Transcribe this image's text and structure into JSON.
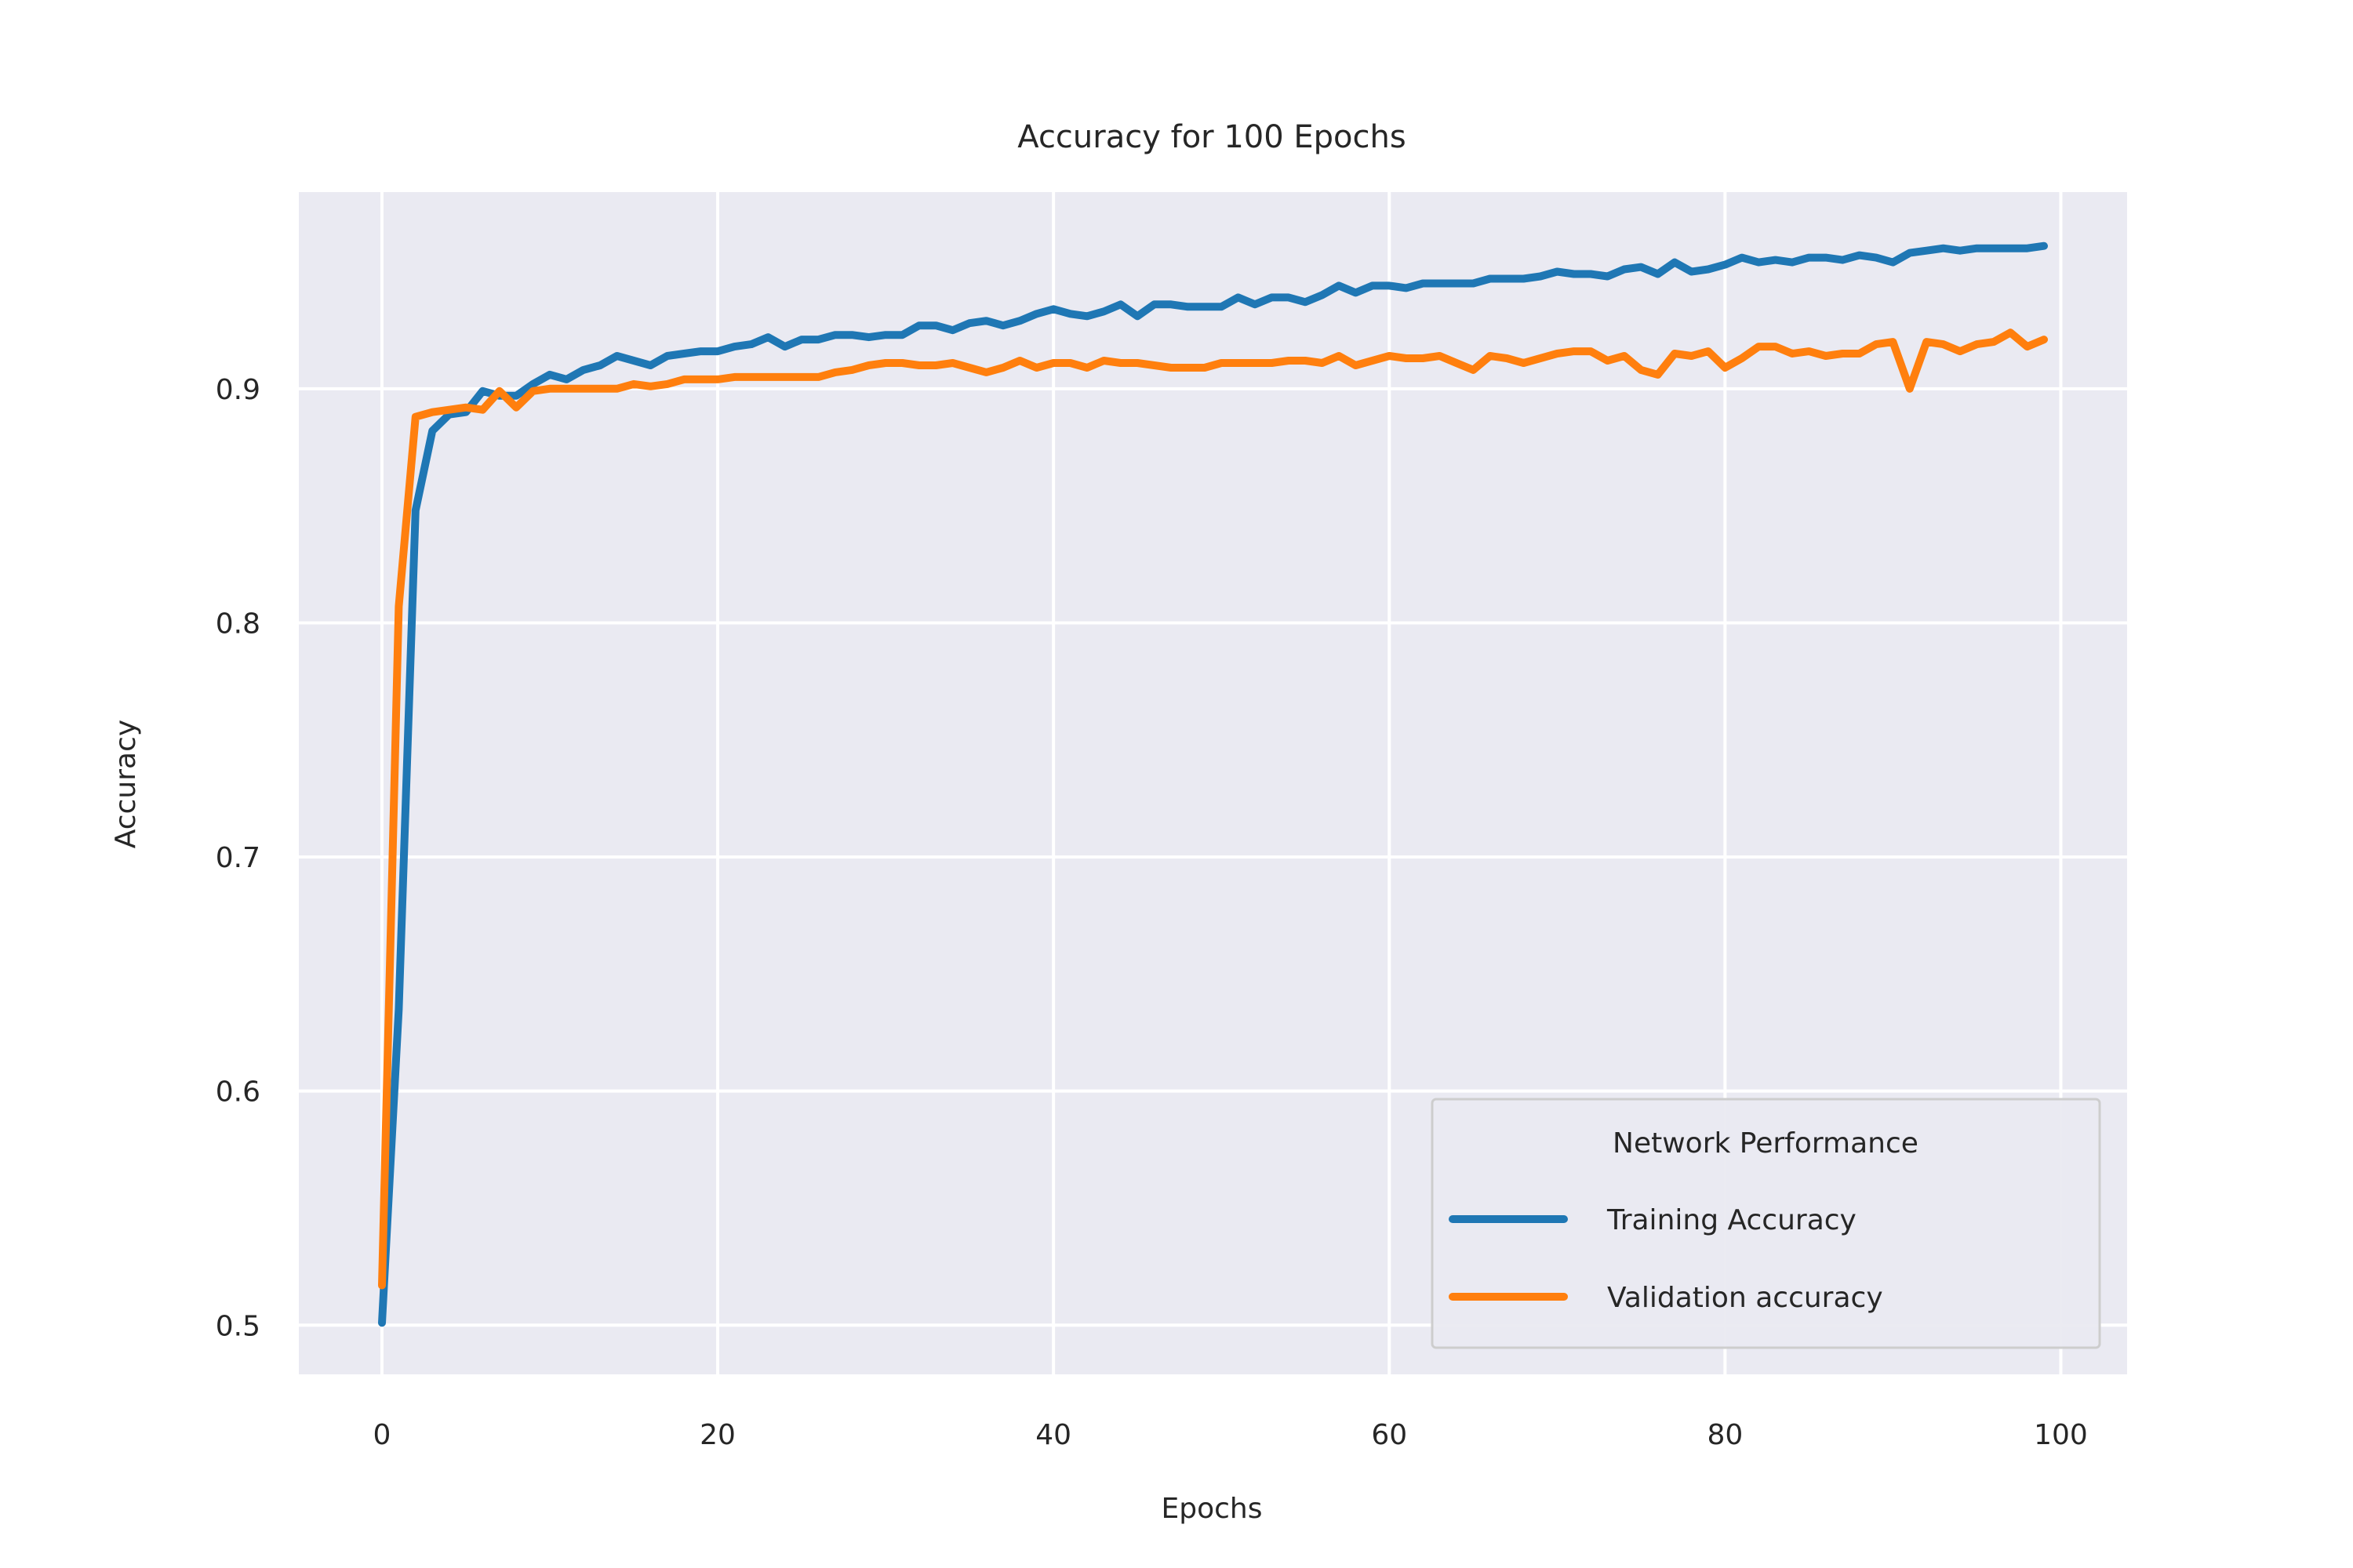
{
  "chart_data": {
    "type": "line",
    "title": "Accuracy for 100 Epochs",
    "xlabel": "Epochs",
    "ylabel": "Accuracy",
    "xlim": [
      -4.95,
      103.95
    ],
    "ylim": [
      0.479,
      0.984
    ],
    "xticks": [
      0,
      20,
      40,
      60,
      80,
      100
    ],
    "yticks": [
      0.5,
      0.6,
      0.7,
      0.8,
      0.9
    ],
    "ytick_labels": [
      "0.5",
      "0.6",
      "0.7",
      "0.8",
      "0.9"
    ],
    "grid": true,
    "legend": {
      "title": "Network Performance",
      "position": "lower right"
    },
    "colors": {
      "background": "#eaeaf2",
      "grid": "#ffffff"
    },
    "series": [
      {
        "name": "Training Accuracy",
        "color": "#1f77b4",
        "x": [
          0,
          1,
          2,
          3,
          4,
          5,
          6,
          7,
          8,
          9,
          10,
          11,
          12,
          13,
          14,
          15,
          16,
          17,
          18,
          19,
          20,
          21,
          22,
          23,
          24,
          25,
          26,
          27,
          28,
          29,
          30,
          31,
          32,
          33,
          34,
          35,
          36,
          37,
          38,
          39,
          40,
          41,
          42,
          43,
          44,
          45,
          46,
          47,
          48,
          49,
          50,
          51,
          52,
          53,
          54,
          55,
          56,
          57,
          58,
          59,
          60,
          61,
          62,
          63,
          64,
          65,
          66,
          67,
          68,
          69,
          70,
          71,
          72,
          73,
          74,
          75,
          76,
          77,
          78,
          79,
          80,
          81,
          82,
          83,
          84,
          85,
          86,
          87,
          88,
          89,
          90,
          91,
          92,
          93,
          94,
          95,
          96,
          97,
          98,
          99
        ],
        "y": [
          0.501,
          0.635,
          0.848,
          0.882,
          0.889,
          0.89,
          0.899,
          0.897,
          0.897,
          0.902,
          0.906,
          0.904,
          0.908,
          0.91,
          0.914,
          0.912,
          0.91,
          0.914,
          0.915,
          0.916,
          0.916,
          0.918,
          0.919,
          0.922,
          0.918,
          0.921,
          0.921,
          0.923,
          0.923,
          0.922,
          0.923,
          0.923,
          0.927,
          0.927,
          0.925,
          0.928,
          0.929,
          0.927,
          0.929,
          0.932,
          0.934,
          0.932,
          0.931,
          0.933,
          0.936,
          0.931,
          0.936,
          0.936,
          0.935,
          0.935,
          0.935,
          0.939,
          0.936,
          0.939,
          0.939,
          0.937,
          0.94,
          0.944,
          0.941,
          0.944,
          0.944,
          0.943,
          0.945,
          0.945,
          0.945,
          0.945,
          0.947,
          0.947,
          0.947,
          0.948,
          0.95,
          0.949,
          0.949,
          0.948,
          0.951,
          0.952,
          0.949,
          0.954,
          0.95,
          0.951,
          0.953,
          0.956,
          0.954,
          0.955,
          0.954,
          0.956,
          0.956,
          0.955,
          0.957,
          0.956,
          0.954,
          0.958,
          0.959,
          0.96,
          0.959,
          0.96,
          0.96,
          0.96,
          0.96,
          0.961
        ]
      },
      {
        "name": "Validation accuracy",
        "color": "#ff7f0e",
        "x": [
          0,
          1,
          2,
          3,
          4,
          5,
          6,
          7,
          8,
          9,
          10,
          11,
          12,
          13,
          14,
          15,
          16,
          17,
          18,
          19,
          20,
          21,
          22,
          23,
          24,
          25,
          26,
          27,
          28,
          29,
          30,
          31,
          32,
          33,
          34,
          35,
          36,
          37,
          38,
          39,
          40,
          41,
          42,
          43,
          44,
          45,
          46,
          47,
          48,
          49,
          50,
          51,
          52,
          53,
          54,
          55,
          56,
          57,
          58,
          59,
          60,
          61,
          62,
          63,
          64,
          65,
          66,
          67,
          68,
          69,
          70,
          71,
          72,
          73,
          74,
          75,
          76,
          77,
          78,
          79,
          80,
          81,
          82,
          83,
          84,
          85,
          86,
          87,
          88,
          89,
          90,
          91,
          92,
          93,
          94,
          95,
          96,
          97,
          98,
          99
        ],
        "y": [
          0.517,
          0.807,
          0.888,
          0.89,
          0.891,
          0.892,
          0.891,
          0.899,
          0.892,
          0.899,
          0.9,
          0.9,
          0.9,
          0.9,
          0.9,
          0.902,
          0.901,
          0.902,
          0.904,
          0.904,
          0.904,
          0.905,
          0.905,
          0.905,
          0.905,
          0.905,
          0.905,
          0.907,
          0.908,
          0.91,
          0.911,
          0.911,
          0.91,
          0.91,
          0.911,
          0.909,
          0.907,
          0.909,
          0.912,
          0.909,
          0.911,
          0.911,
          0.909,
          0.912,
          0.911,
          0.911,
          0.91,
          0.909,
          0.909,
          0.909,
          0.911,
          0.911,
          0.911,
          0.911,
          0.912,
          0.912,
          0.911,
          0.914,
          0.91,
          0.912,
          0.914,
          0.913,
          0.913,
          0.914,
          0.911,
          0.908,
          0.914,
          0.913,
          0.911,
          0.913,
          0.915,
          0.916,
          0.916,
          0.912,
          0.914,
          0.908,
          0.906,
          0.915,
          0.914,
          0.916,
          0.909,
          0.913,
          0.918,
          0.918,
          0.915,
          0.916,
          0.914,
          0.915,
          0.915,
          0.919,
          0.92,
          0.9,
          0.92,
          0.919,
          0.916,
          0.919,
          0.92,
          0.924,
          0.918,
          0.921
        ]
      }
    ]
  }
}
